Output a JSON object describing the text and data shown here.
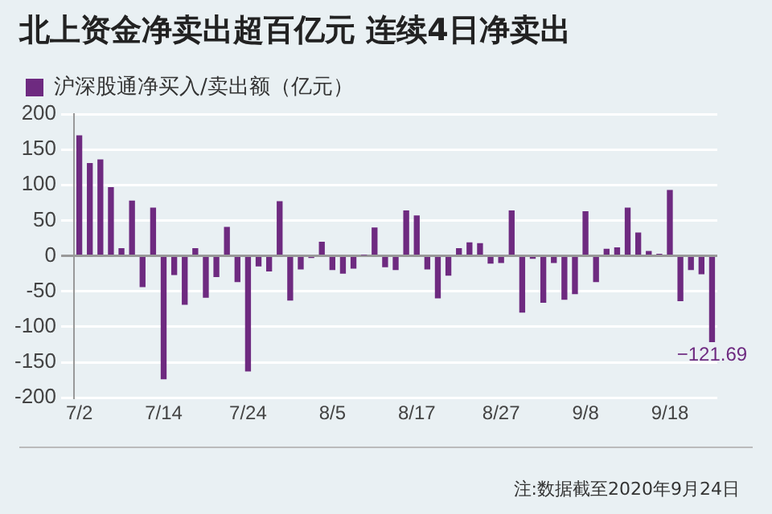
{
  "chart_data": {
    "type": "bar",
    "title": "北上资金净卖出超百亿元 连续4日净卖出",
    "categories": [
      "7/2",
      null,
      null,
      null,
      null,
      null,
      null,
      null,
      "7/14",
      null,
      null,
      null,
      null,
      null,
      null,
      null,
      "7/24",
      null,
      null,
      null,
      null,
      null,
      null,
      null,
      "8/5",
      null,
      null,
      null,
      null,
      null,
      null,
      null,
      "8/17",
      null,
      null,
      null,
      null,
      null,
      null,
      null,
      "8/27",
      null,
      null,
      null,
      null,
      null,
      null,
      null,
      "9/8",
      null,
      null,
      null,
      null,
      null,
      null,
      null,
      "9/18",
      null,
      null,
      null,
      null
    ],
    "series": [
      {
        "name": "沪深股通净买入/卖出额（亿元）",
        "color": "#6e2a80",
        "values": [
          170,
          131,
          136,
          97,
          11,
          78,
          -44,
          68,
          -174,
          -27,
          -69,
          11,
          -59,
          -30,
          41,
          -37,
          -163,
          -15,
          -22,
          77,
          -63,
          -19,
          -3,
          20,
          -20,
          -25,
          -18,
          1,
          40,
          -16,
          -20,
          64,
          57,
          -19,
          -60,
          -28,
          11,
          19,
          18,
          -11,
          -10,
          64,
          -80,
          -4,
          -66,
          -10,
          -62,
          -54,
          63,
          -37,
          10,
          12,
          68,
          33,
          7,
          3,
          93,
          -64,
          -20,
          -26,
          -121.69
        ],
        "value_labels": [
          null,
          null,
          null,
          null,
          null,
          null,
          null,
          null,
          null,
          null,
          null,
          null,
          null,
          null,
          null,
          null,
          null,
          null,
          null,
          null,
          null,
          null,
          null,
          null,
          null,
          null,
          null,
          null,
          null,
          null,
          null,
          null,
          null,
          null,
          null,
          null,
          null,
          null,
          null,
          null,
          null,
          null,
          null,
          null,
          null,
          null,
          null,
          null,
          null,
          null,
          null,
          null,
          null,
          null,
          null,
          null,
          null,
          null,
          null,
          null,
          "−121.69"
        ]
      }
    ],
    "ylim": [
      -200,
      200
    ],
    "yticks": [
      -200,
      -150,
      -100,
      -50,
      0,
      50,
      100,
      150,
      200
    ],
    "grid": "y",
    "legend": "top left",
    "annotations": [
      "注:数据截至2020年9月24日"
    ]
  }
}
